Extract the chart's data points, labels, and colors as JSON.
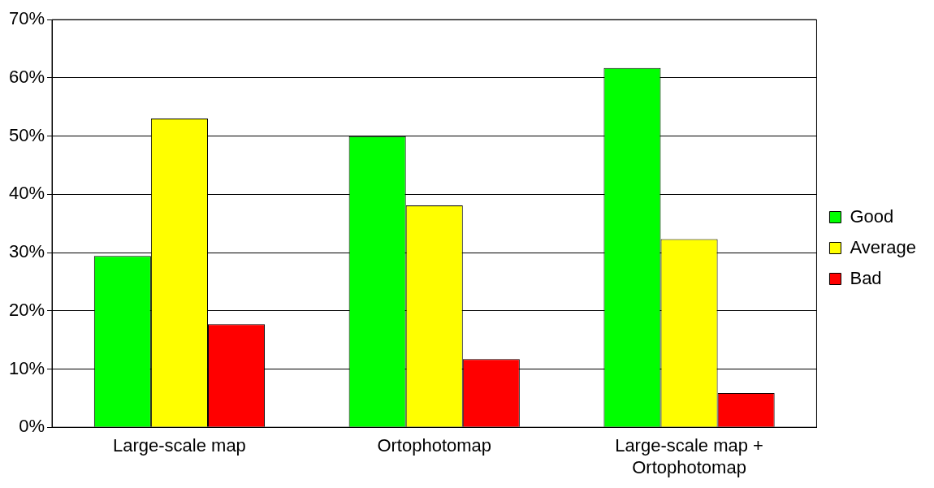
{
  "chart_data": {
    "type": "bar",
    "categories": [
      "Large-scale map",
      "Ortophotomap",
      "Large-scale map + Ortophotomap"
    ],
    "series": [
      {
        "name": "Good",
        "color": "#00ff00",
        "values": [
          29.4,
          50,
          61.7
        ]
      },
      {
        "name": "Average",
        "color": "#ffff00",
        "values": [
          53,
          38.1,
          32.3
        ]
      },
      {
        "name": "Bad",
        "color": "#ff0000",
        "values": [
          17.7,
          11.7,
          5.9
        ]
      }
    ],
    "ylim": [
      0,
      70
    ],
    "yticks": [
      {
        "value": 0,
        "label": "0%"
      },
      {
        "value": 10,
        "label": "10%"
      },
      {
        "value": 20,
        "label": "20%"
      },
      {
        "value": 30,
        "label": "30%"
      },
      {
        "value": 40,
        "label": "40%"
      },
      {
        "value": 50,
        "label": "50%"
      },
      {
        "value": 60,
        "label": "60%"
      },
      {
        "value": 70,
        "label": "70%"
      }
    ],
    "grid": "y",
    "legend": "right"
  }
}
